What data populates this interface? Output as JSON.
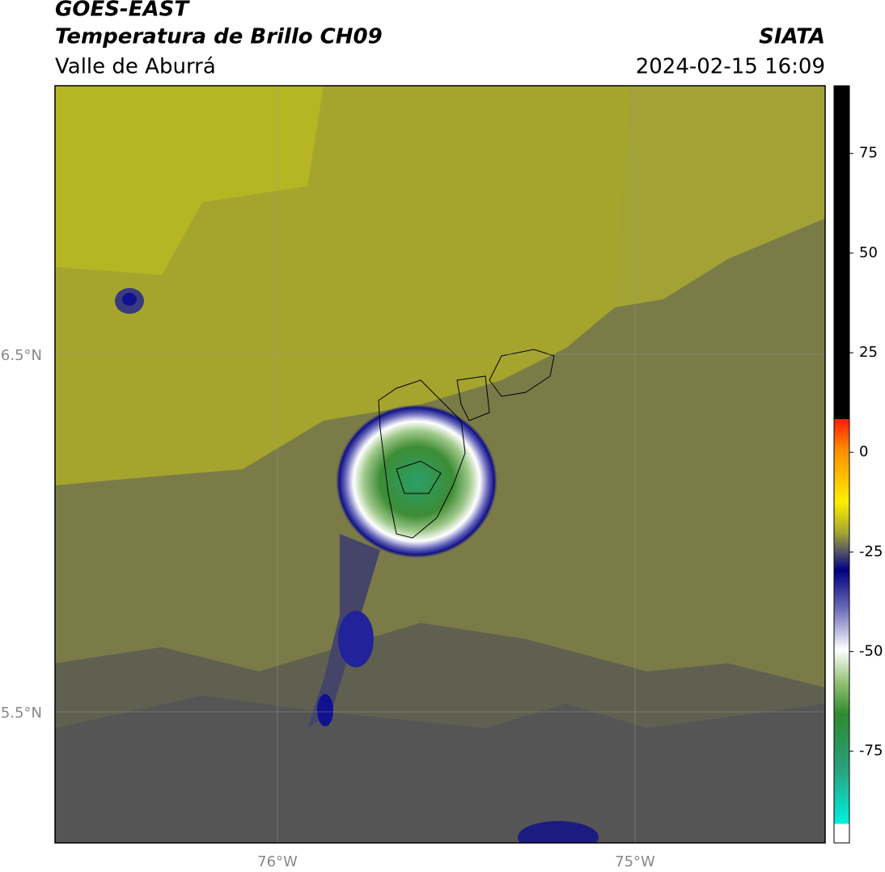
{
  "header": {
    "title": "GOES-EAST",
    "subtitle": "Temperatura de Brillo CH09",
    "region": "Valle de Aburrá",
    "source": "SIATA",
    "timestamp": "2024-02-15 16:09"
  },
  "map": {
    "lat_labels": [
      "6.5°N",
      "5.5°N"
    ],
    "lon_labels": [
      "76°W",
      "75°W"
    ]
  },
  "colorbar": {
    "range": [
      -98,
      92
    ],
    "ticks": [
      75,
      50,
      25,
      0,
      -25,
      -50,
      -75
    ]
  }
}
